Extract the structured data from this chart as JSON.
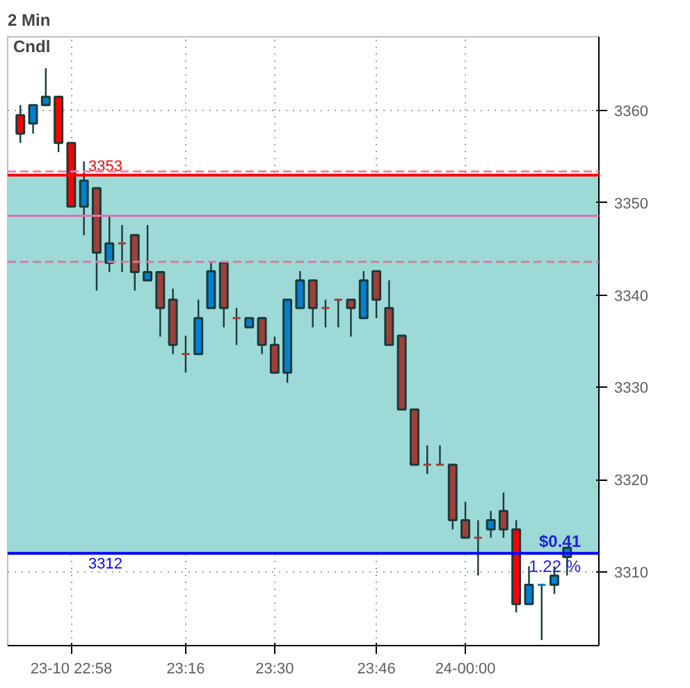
{
  "chart_data": {
    "type": "candlestick",
    "title": "2 Min",
    "x": [
      22.8333,
      22.8667,
      22.9,
      22.9333,
      22.9667,
      23.0,
      23.0333,
      23.0667,
      23.1,
      23.1333,
      23.1667,
      23.2,
      23.2333,
      23.2667,
      23.3,
      23.3333,
      23.3667,
      23.4,
      23.4333,
      23.4667,
      23.5,
      23.5333,
      23.5667,
      23.6,
      23.6333,
      23.6667,
      23.7,
      23.7333,
      23.7667,
      23.8,
      23.8333,
      23.8667,
      23.9,
      23.9333,
      23.9667,
      24.0,
      24.0333,
      24.0667,
      24.1,
      24.1333,
      24.1667,
      24.2,
      24.2333,
      24.2667
    ],
    "ohlc": [
      [
        3359.5,
        3360.6,
        3356.5,
        3357.5
      ],
      [
        3358.6,
        3360.6,
        3357.5,
        3360.6
      ],
      [
        3360.6,
        3364.6,
        3360.6,
        3361.5
      ],
      [
        3361.5,
        3361.5,
        3355.5,
        3356.5
      ],
      [
        3356.5,
        3356.5,
        3349.6,
        3349.6
      ],
      [
        3349.6,
        3354.5,
        3346.5,
        3352.4
      ],
      [
        3351.6,
        3351.6,
        3340.5,
        3344.6
      ],
      [
        3343.5,
        3348.6,
        3342.5,
        3345.6
      ],
      [
        3345.6,
        3347.6,
        3342.5,
        3345.6
      ],
      [
        3346.5,
        3346.5,
        3340.5,
        3342.5
      ],
      [
        3341.6,
        3347.6,
        3341.6,
        3342.5
      ],
      [
        3342.5,
        3342.5,
        3335.5,
        3338.6
      ],
      [
        3339.5,
        3340.7,
        3333.6,
        3334.6
      ],
      [
        3333.6,
        3335.6,
        3331.6,
        3333.6
      ],
      [
        3333.6,
        3339.5,
        3333.6,
        3337.5
      ],
      [
        3338.6,
        3343.5,
        3338.6,
        3342.6
      ],
      [
        3343.5,
        3343.5,
        3336.5,
        3338.6
      ],
      [
        3337.5,
        3338.6,
        3334.6,
        3337.5
      ],
      [
        3336.5,
        3337.5,
        3336.5,
        3337.5
      ],
      [
        3337.5,
        3337.5,
        3333.6,
        3334.6
      ],
      [
        3334.6,
        3335.5,
        3331.6,
        3331.6
      ],
      [
        3331.6,
        3339.5,
        3330.5,
        3339.5
      ],
      [
        3338.6,
        3342.6,
        3338.6,
        3341.6
      ],
      [
        3341.6,
        3341.6,
        3336.5,
        3338.6
      ],
      [
        3338.6,
        3339.5,
        3336.5,
        3338.6
      ],
      [
        3339.5,
        3339.5,
        3336.5,
        3339.5
      ],
      [
        3339.5,
        3339.5,
        3335.5,
        3338.6
      ],
      [
        3337.5,
        3342.6,
        3337.5,
        3341.6
      ],
      [
        3342.6,
        3342.6,
        3337.5,
        3339.5
      ],
      [
        3338.6,
        3341.6,
        3334.6,
        3334.6
      ],
      [
        3335.6,
        3335.6,
        3327.6,
        3327.6
      ],
      [
        3327.6,
        3327.6,
        3321.6,
        3321.6
      ],
      [
        3321.6,
        3323.7,
        3320.6,
        3321.6
      ],
      [
        3321.6,
        3323.7,
        3321.6,
        3321.6
      ],
      [
        3321.6,
        3321.6,
        3314.6,
        3315.6
      ],
      [
        3315.6,
        3317.6,
        3313.7,
        3313.7
      ],
      [
        3313.7,
        3315.6,
        3309.6,
        3313.7
      ],
      [
        3314.6,
        3316.6,
        3313.7,
        3315.6
      ],
      [
        3316.6,
        3318.6,
        3313.7,
        3314.6
      ],
      [
        3314.6,
        3315.6,
        3305.6,
        3306.5
      ],
      [
        3306.5,
        3310.6,
        3306.5,
        3308.6
      ],
      [
        3308.6,
        3308.6,
        3302.6,
        3308.6
      ],
      [
        3308.6,
        3310.6,
        3307.6,
        3309.6
      ],
      [
        3311.6,
        3312.6,
        3309.6,
        3312.6
      ]
    ],
    "colors": [
      "#ff0000",
      "#0080d0",
      "#0080d0",
      "#ff0000",
      "#ff0000",
      "#0080d0",
      "#a0403a",
      "#0080d0",
      "#a0403a",
      "#a0403a",
      "#0080d0",
      "#a0403a",
      "#a0403a",
      "#a0403a",
      "#0080d0",
      "#0080d0",
      "#a0403a",
      "#a0403a",
      "#0080d0",
      "#a0403a",
      "#a0403a",
      "#0080d0",
      "#0080d0",
      "#a0403a",
      "#a0403a",
      "#a0403a",
      "#a0403a",
      "#0080d0",
      "#a0403a",
      "#a0403a",
      "#a0403a",
      "#a0403a",
      "#a0403a",
      "#a0403a",
      "#a0403a",
      "#a0403a",
      "#a0403a",
      "#0080d0",
      "#a0403a",
      "#ff0000",
      "#0080d0",
      "#0080d0",
      "#0080d0",
      "#0080d0"
    ],
    "xlim": [
      22.8,
      24.35
    ],
    "ylim": [
      3302,
      3368
    ],
    "xticks": [
      {
        "value": 22.9667,
        "label": "23-10 22:58"
      },
      {
        "value": 23.2667,
        "label": "23:16"
      },
      {
        "value": 23.5,
        "label": "23:30"
      },
      {
        "value": 23.7667,
        "label": "23:46"
      },
      {
        "value": 24.0,
        "label": "24-00:00"
      }
    ],
    "yticks": [
      3310,
      3320,
      3330,
      3340,
      3350,
      3360
    ],
    "grid": true,
    "bands": [
      {
        "axis": "y",
        "from": 3312,
        "to": 3353,
        "color": "#9dd9d6"
      }
    ],
    "ref_lines": [
      {
        "axis": "y",
        "value": 3353,
        "label": "3353",
        "color": "#ff0000",
        "line_style": "solid"
      },
      {
        "axis": "y",
        "value": 3312,
        "label": "3312",
        "color": "#0000ff",
        "line_style": "solid"
      },
      {
        "axis": "y",
        "value": 3353.4,
        "color": "#f080b0",
        "line_style": "dashed"
      },
      {
        "axis": "y",
        "value": 3348.6,
        "color": "#e070b0",
        "line_style": "solid"
      },
      {
        "axis": "y",
        "value": 3343.6,
        "color": "#d080a0",
        "line_style": "dashed"
      }
    ],
    "annotations": [
      "Cndl",
      "$0.41",
      "1.22 %"
    ]
  }
}
